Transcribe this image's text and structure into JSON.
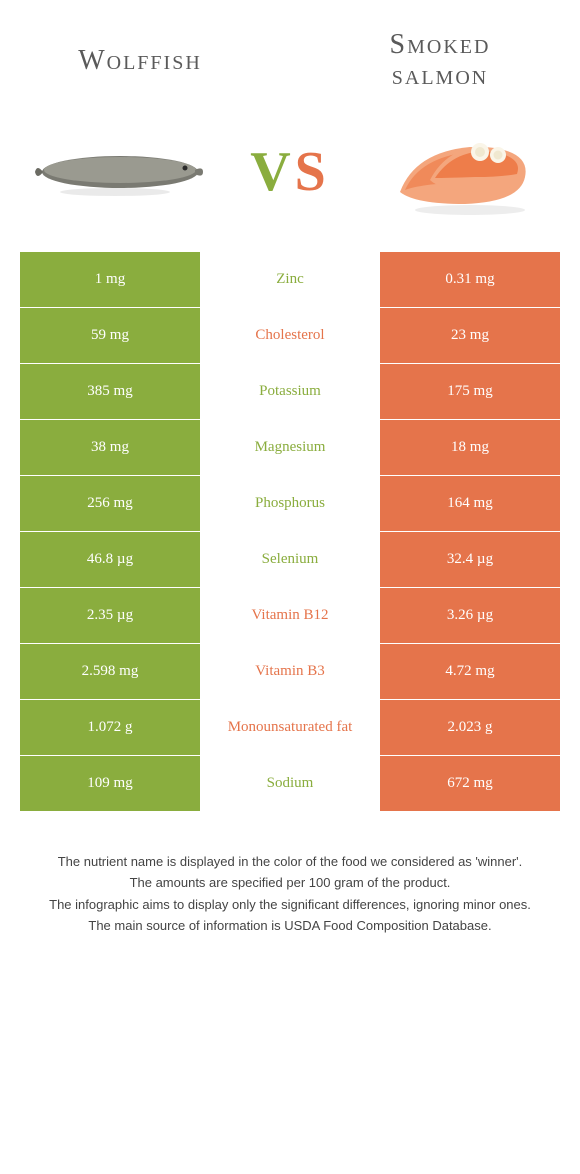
{
  "colors": {
    "green": "#8aad3e",
    "orange": "#e5744b",
    "green_text": "#8aad3e",
    "orange_text": "#e5744b",
    "title_text": "#5a5a5a"
  },
  "left_title": "Wolffish",
  "right_title": "Smoked salmon",
  "vs_v": "V",
  "vs_s": "S",
  "rows": [
    {
      "left": "1 mg",
      "mid": "Zinc",
      "right": "0.31 mg",
      "winner": "left"
    },
    {
      "left": "59 mg",
      "mid": "Cholesterol",
      "right": "23 mg",
      "winner": "right"
    },
    {
      "left": "385 mg",
      "mid": "Potassium",
      "right": "175 mg",
      "winner": "left"
    },
    {
      "left": "38 mg",
      "mid": "Magnesium",
      "right": "18 mg",
      "winner": "left"
    },
    {
      "left": "256 mg",
      "mid": "Phosphorus",
      "right": "164 mg",
      "winner": "left"
    },
    {
      "left": "46.8 µg",
      "mid": "Selenium",
      "right": "32.4 µg",
      "winner": "left"
    },
    {
      "left": "2.35 µg",
      "mid": "Vitamin B12",
      "right": "3.26 µg",
      "winner": "right"
    },
    {
      "left": "2.598 mg",
      "mid": "Vitamin B3",
      "right": "4.72 mg",
      "winner": "right"
    },
    {
      "left": "1.072 g",
      "mid": "Monounsaturated fat",
      "right": "2.023 g",
      "winner": "right"
    },
    {
      "left": "109 mg",
      "mid": "Sodium",
      "right": "672 mg",
      "winner": "left"
    }
  ],
  "footer": {
    "l1": "The nutrient name is displayed in the color of the food we considered as 'winner'.",
    "l2": "The amounts are specified per 100 gram of the product.",
    "l3": "The infographic aims to display only the significant differences, ignoring minor ones.",
    "l4": "The main source of information is USDA Food Composition Database."
  }
}
